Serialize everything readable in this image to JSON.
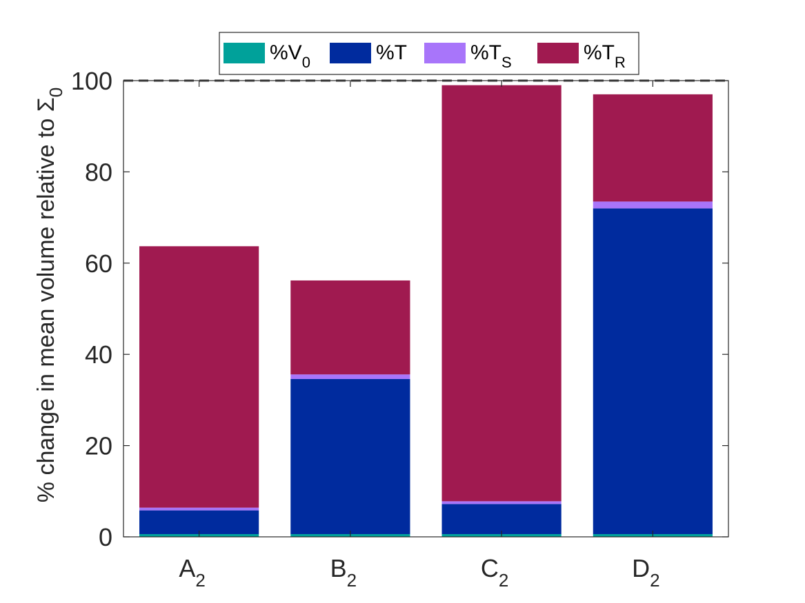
{
  "chart_data": {
    "type": "bar",
    "stacked": true,
    "categories": [
      {
        "main": "A",
        "sub": "2"
      },
      {
        "main": "B",
        "sub": "2"
      },
      {
        "main": "C",
        "sub": "2"
      },
      {
        "main": "D",
        "sub": "2"
      }
    ],
    "series": [
      {
        "name": "%V",
        "name_sub": "0",
        "color": "#00A19A",
        "values": [
          0.6,
          0.6,
          0.6,
          0.6
        ]
      },
      {
        "name": "%T",
        "name_sub": "",
        "color": "#002B9E",
        "values": [
          5.2,
          34.0,
          6.6,
          71.4
        ]
      },
      {
        "name": "%T",
        "name_sub": "S",
        "color": "#A875FA",
        "values": [
          0.6,
          1.0,
          0.6,
          1.5
        ]
      },
      {
        "name": "%T",
        "name_sub": "R",
        "color": "#A01A50",
        "values": [
          57.3,
          20.6,
          91.2,
          23.5
        ]
      }
    ],
    "reference_line": {
      "y": 100,
      "style": "dashed"
    },
    "ylabel": "% change in mean volume relative to Σ",
    "ylabel_sub": "0",
    "xlabel": "",
    "ylim": [
      0,
      100
    ],
    "yticks": [
      0,
      20,
      40,
      60,
      80,
      100
    ],
    "grid": false,
    "legend_position": "top-center"
  }
}
